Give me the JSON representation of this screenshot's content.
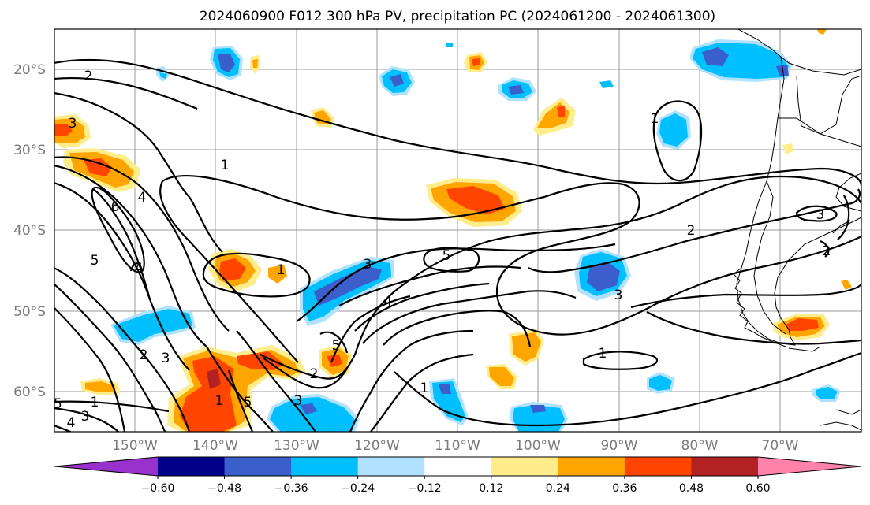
{
  "title": "2024060900 F012 300 hPa PV, precipitation PC (2024061200 - 2024061300)",
  "lat_labels": [
    "20°S",
    "30°S",
    "40°S",
    "50°S",
    "60°S"
  ],
  "lon_labels": [
    "150°W",
    "140°W",
    "130°W",
    "120°W",
    "110°W",
    "100°W",
    "90°W",
    "80°W",
    "70°W"
  ],
  "colorbar": {
    "ticks": [
      "−0.60",
      "−0.48",
      "−0.36",
      "−0.24",
      "−0.12",
      "0.12",
      "0.24",
      "0.36",
      "0.48",
      "0.60"
    ],
    "colors": [
      "#9932cc",
      "#00008b",
      "#3a5fcd",
      "#00bfff",
      "#b0e2ff",
      "#ffffff",
      "#ffec8b",
      "#ffa500",
      "#ff4500",
      "#b22222",
      "#ff82ab"
    ]
  },
  "contour_labels": [
    "2",
    "1",
    "4",
    "6",
    "5",
    "4",
    "1",
    "3",
    "4",
    "5",
    "1",
    "3",
    "5",
    "2",
    "3",
    "1",
    "3",
    "2",
    "1",
    "2",
    "3",
    "5",
    "3",
    "2",
    "1",
    "3",
    "4",
    "5",
    "1"
  ],
  "map_colors": {
    "pos_light": "#ffec8b",
    "pos_mid": "#ffa500",
    "pos_strong": "#ff4500",
    "neg_light": "#b0e2ff",
    "neg_mid": "#00bfff",
    "neg_strong": "#3a5fcd"
  }
}
